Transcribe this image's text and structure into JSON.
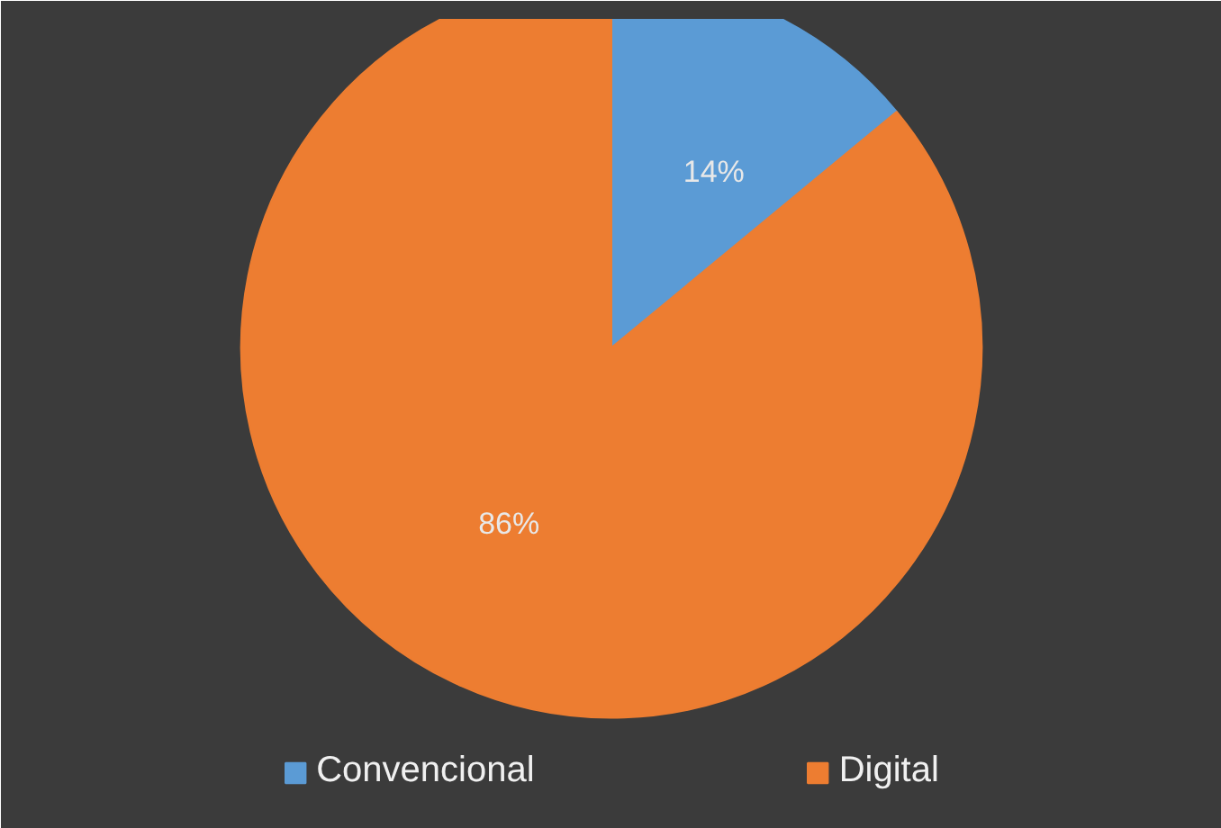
{
  "chart_data": {
    "type": "pie",
    "categories": [
      "Convencional",
      "Digital"
    ],
    "values": [
      14,
      86
    ],
    "colors": [
      "#5b9bd5",
      "#ed7d31"
    ],
    "value_labels": [
      "14%",
      "86%"
    ],
    "legend": "bottom"
  }
}
